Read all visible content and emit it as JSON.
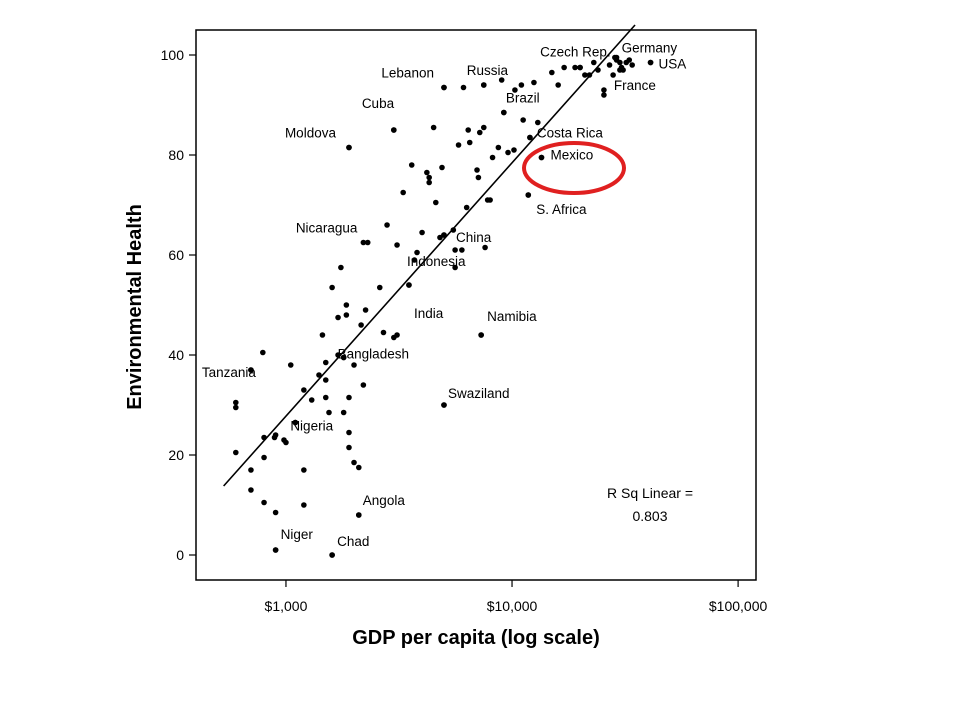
{
  "chart_data": {
    "type": "scatter",
    "xlabel": "GDP per capita (log scale)",
    "ylabel": "Environmental Health",
    "x_scale": "log",
    "xlim": [
      400,
      120000
    ],
    "ylim": [
      -5,
      105
    ],
    "x_ticks": [
      {
        "value": 1000,
        "label": "$1,000"
      },
      {
        "value": 10000,
        "label": "$10,000"
      },
      {
        "value": 100000,
        "label": "$100,000"
      }
    ],
    "y_ticks": [
      0,
      20,
      40,
      60,
      80,
      100
    ],
    "grid": false,
    "fit_line": {
      "type": "linear",
      "start": [
        530,
        13.8
      ],
      "end": [
        35000,
        106
      ]
    },
    "r_squared_text": [
      "R Sq Linear =",
      "0.803"
    ],
    "highlight": {
      "target": "Mexico",
      "shape": "ellipse",
      "color": "#e02020"
    },
    "labeled_points": [
      {
        "label": "Germany",
        "x": 29000,
        "y": 99.5
      },
      {
        "label": "USA",
        "x": 41000,
        "y": 98.5
      },
      {
        "label": "France",
        "x": 30000,
        "y": 97
      },
      {
        "label": "Czech Rep.",
        "x": 20000,
        "y": 97.5
      },
      {
        "label": "Russia",
        "x": 7500,
        "y": 94
      },
      {
        "label": "Lebanon",
        "x": 5000,
        "y": 93.5
      },
      {
        "label": "Brazil",
        "x": 9200,
        "y": 88.5
      },
      {
        "label": "Costa Rica",
        "x": 12000,
        "y": 83.5
      },
      {
        "label": "Mexico",
        "x": 13500,
        "y": 79.5
      },
      {
        "label": "S. Africa",
        "x": 11800,
        "y": 72
      },
      {
        "label": "Cuba",
        "x": 3000,
        "y": 85
      },
      {
        "label": "Moldova",
        "x": 1900,
        "y": 81.5
      },
      {
        "label": "Nicaragua",
        "x": 2200,
        "y": 62.5
      },
      {
        "label": "China",
        "x": 5000,
        "y": 64
      },
      {
        "label": "Indonesia",
        "x": 3500,
        "y": 54
      },
      {
        "label": "India",
        "x": 3100,
        "y": 44
      },
      {
        "label": "Namibia",
        "x": 7300,
        "y": 44
      },
      {
        "label": "Bangladesh",
        "x": 1800,
        "y": 39.5
      },
      {
        "label": "Tanzania",
        "x": 700,
        "y": 37
      },
      {
        "label": "Swaziland",
        "x": 5000,
        "y": 30
      },
      {
        "label": "Nigeria",
        "x": 1100,
        "y": 26.5
      },
      {
        "label": "Angola",
        "x": 2100,
        "y": 8
      },
      {
        "label": "Niger",
        "x": 900,
        "y": 1
      },
      {
        "label": "Chad",
        "x": 1600,
        "y": 0
      }
    ],
    "points": [
      [
        600,
        30.5
      ],
      [
        600,
        29.5
      ],
      [
        600,
        20.5
      ],
      [
        700,
        37
      ],
      [
        700,
        17
      ],
      [
        700,
        13
      ],
      [
        790,
        40.5
      ],
      [
        800,
        23.5
      ],
      [
        800,
        19.5
      ],
      [
        800,
        10.5
      ],
      [
        890,
        23.5
      ],
      [
        900,
        8.5
      ],
      [
        900,
        24
      ],
      [
        900,
        1
      ],
      [
        980,
        23
      ],
      [
        1000,
        22.5
      ],
      [
        1050,
        38
      ],
      [
        1100,
        26.5
      ],
      [
        1200,
        33
      ],
      [
        1200,
        17
      ],
      [
        1200,
        10
      ],
      [
        1300,
        31
      ],
      [
        1400,
        36
      ],
      [
        1450,
        44
      ],
      [
        1500,
        38.5
      ],
      [
        1500,
        35
      ],
      [
        1500,
        31.5
      ],
      [
        1550,
        28.5
      ],
      [
        1600,
        0
      ],
      [
        1600,
        53.5
      ],
      [
        1700,
        40
      ],
      [
        1700,
        47.5
      ],
      [
        1750,
        57.5
      ],
      [
        1800,
        39.5
      ],
      [
        1800,
        28.5
      ],
      [
        1850,
        50
      ],
      [
        1850,
        48
      ],
      [
        1900,
        31.5
      ],
      [
        1900,
        24.5
      ],
      [
        1900,
        21.5
      ],
      [
        1900,
        81.5
      ],
      [
        2000,
        18.5
      ],
      [
        2000,
        38
      ],
      [
        2100,
        17.5
      ],
      [
        2100,
        8
      ],
      [
        2150,
        46
      ],
      [
        2200,
        34
      ],
      [
        2250,
        49
      ],
      [
        2300,
        62.5
      ],
      [
        2600,
        53.5
      ],
      [
        2700,
        44.5
      ],
      [
        2800,
        66
      ],
      [
        3000,
        43.5
      ],
      [
        3000,
        85
      ],
      [
        3100,
        62
      ],
      [
        3300,
        72.5
      ],
      [
        3500,
        54
      ],
      [
        3600,
        78
      ],
      [
        3700,
        59
      ],
      [
        3800,
        60.5
      ],
      [
        4000,
        64.5
      ],
      [
        4200,
        76.5
      ],
      [
        4300,
        75.5
      ],
      [
        4300,
        74.5
      ],
      [
        4500,
        85.5
      ],
      [
        4600,
        70.5
      ],
      [
        4800,
        63.5
      ],
      [
        4900,
        77.5
      ],
      [
        5000,
        93.5
      ],
      [
        5000,
        64
      ],
      [
        5000,
        30
      ],
      [
        5500,
        65
      ],
      [
        5600,
        61
      ],
      [
        5600,
        57.5
      ],
      [
        5800,
        82
      ],
      [
        6000,
        61
      ],
      [
        6100,
        93.5
      ],
      [
        6300,
        69.5
      ],
      [
        6400,
        85
      ],
      [
        6500,
        82.5
      ],
      [
        7000,
        77
      ],
      [
        7100,
        75.5
      ],
      [
        7200,
        84.5
      ],
      [
        7300,
        44
      ],
      [
        7500,
        85.5
      ],
      [
        7500,
        94
      ],
      [
        7600,
        61.5
      ],
      [
        7800,
        71
      ],
      [
        8000,
        71
      ],
      [
        8200,
        79.5
      ],
      [
        8700,
        81.5
      ],
      [
        9000,
        95
      ],
      [
        9200,
        88.5
      ],
      [
        9600,
        80.5
      ],
      [
        10200,
        81
      ],
      [
        10300,
        93
      ],
      [
        11000,
        94
      ],
      [
        11200,
        87
      ],
      [
        11800,
        72
      ],
      [
        12000,
        83.5
      ],
      [
        12500,
        94.5
      ],
      [
        13000,
        86.5
      ],
      [
        13500,
        79.5
      ],
      [
        15000,
        96.5
      ],
      [
        16000,
        94
      ],
      [
        17000,
        97.5
      ],
      [
        19000,
        97.5
      ],
      [
        20000,
        97.5
      ],
      [
        21000,
        96
      ],
      [
        22000,
        96
      ],
      [
        23000,
        98.5
      ],
      [
        24000,
        97
      ],
      [
        25500,
        93
      ],
      [
        25500,
        92
      ],
      [
        27000,
        98
      ],
      [
        28000,
        96
      ],
      [
        28500,
        99.5
      ],
      [
        29000,
        99
      ],
      [
        30000,
        98.5
      ],
      [
        30500,
        97.5
      ],
      [
        31000,
        97
      ],
      [
        32000,
        98.5
      ],
      [
        33000,
        99
      ],
      [
        34000,
        98
      ],
      [
        41000,
        98.5
      ]
    ]
  }
}
